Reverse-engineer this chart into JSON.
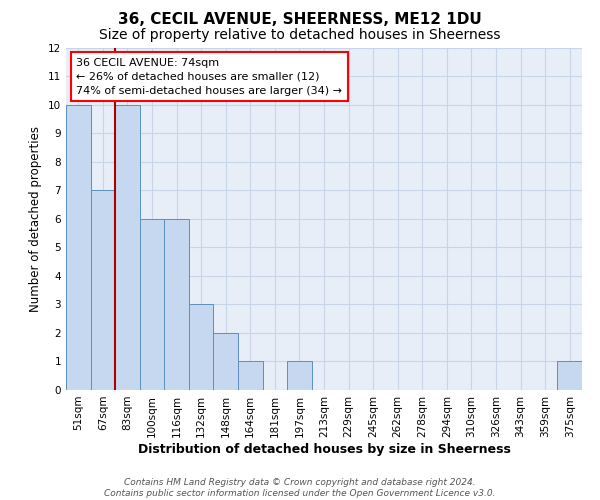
{
  "title": "36, CECIL AVENUE, SHEERNESS, ME12 1DU",
  "subtitle": "Size of property relative to detached houses in Sheerness",
  "xlabel": "Distribution of detached houses by size in Sheerness",
  "ylabel": "Number of detached properties",
  "categories": [
    "51sqm",
    "67sqm",
    "83sqm",
    "100sqm",
    "116sqm",
    "132sqm",
    "148sqm",
    "164sqm",
    "181sqm",
    "197sqm",
    "213sqm",
    "229sqm",
    "245sqm",
    "262sqm",
    "278sqm",
    "294sqm",
    "310sqm",
    "326sqm",
    "343sqm",
    "359sqm",
    "375sqm"
  ],
  "values": [
    10,
    7,
    10,
    6,
    6,
    3,
    2,
    1,
    0,
    1,
    0,
    0,
    0,
    0,
    0,
    0,
    0,
    0,
    0,
    0,
    1
  ],
  "bar_color": "#c5d8f0",
  "bar_edge_color": "#5a8fc3",
  "annotation_box_text": "36 CECIL AVENUE: 74sqm\n← 26% of detached houses are smaller (12)\n74% of semi-detached houses are larger (34) →",
  "red_line_x": 1.5,
  "ylim": [
    0,
    12
  ],
  "yticks": [
    0,
    1,
    2,
    3,
    4,
    5,
    6,
    7,
    8,
    9,
    10,
    11,
    12
  ],
  "grid_color": "#c8d4e8",
  "background_color": "#e8eef8",
  "footer_text": "Contains HM Land Registry data © Crown copyright and database right 2024.\nContains public sector information licensed under the Open Government Licence v3.0.",
  "title_fontsize": 11,
  "subtitle_fontsize": 10,
  "xlabel_fontsize": 9,
  "ylabel_fontsize": 8.5,
  "tick_fontsize": 7.5
}
